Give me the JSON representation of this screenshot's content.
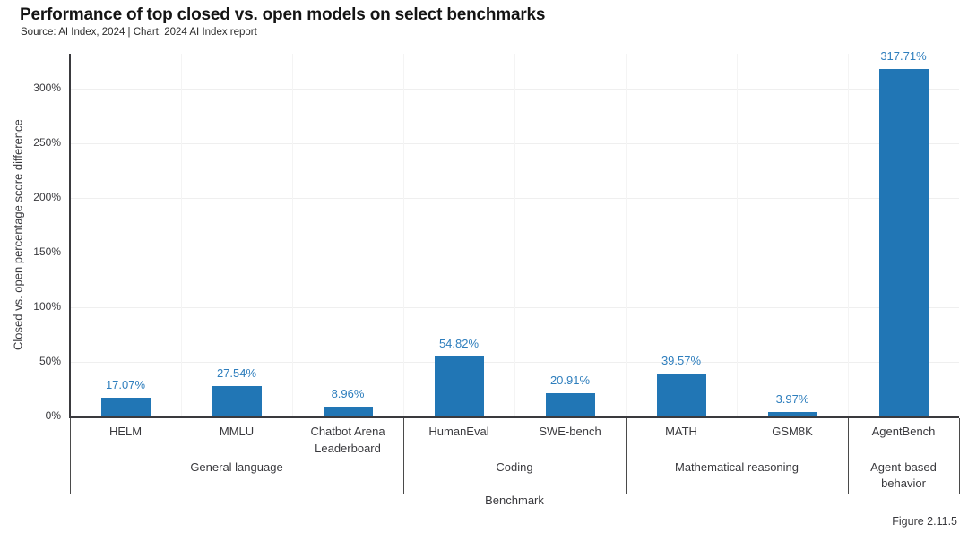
{
  "header": {
    "title": "Performance of top closed vs. open models on select benchmarks",
    "subtitle": "Source: AI Index, 2024 | Chart: 2024 AI Index report"
  },
  "figure_note": "Figure 2.11.5",
  "chart_data": {
    "type": "bar",
    "title": "Performance of top closed vs. open models on select benchmarks",
    "xlabel": "Benchmark",
    "ylabel": "Closed vs. open percentage score difference",
    "ylim": [
      0,
      330
    ],
    "grid": true,
    "legend": "none",
    "bar_color": "#2176b5",
    "value_label_color": "#2e7ebd",
    "axis_color": "#3a3a3e",
    "yticks": [
      "0%",
      "50%",
      "100%",
      "150%",
      "200%",
      "250%",
      "300%"
    ],
    "ytick_values": [
      0,
      50,
      100,
      150,
      200,
      250,
      300
    ],
    "groups": [
      {
        "label": "General language",
        "benchmarks": [
          {
            "name": "HELM",
            "value": 17.07,
            "label": "17.07%"
          },
          {
            "name": "MMLU",
            "value": 27.54,
            "label": "27.54%"
          },
          {
            "name": "Chatbot Arena Leaderboard",
            "value": 8.96,
            "label": "8.96%"
          }
        ]
      },
      {
        "label": "Coding",
        "benchmarks": [
          {
            "name": "HumanEval",
            "value": 54.82,
            "label": "54.82%"
          },
          {
            "name": "SWE-bench",
            "value": 20.91,
            "label": "20.91%"
          }
        ]
      },
      {
        "label": "Mathematical reasoning",
        "benchmarks": [
          {
            "name": "MATH",
            "value": 39.57,
            "label": "39.57%"
          },
          {
            "name": "GSM8K",
            "value": 3.97,
            "label": "3.97%"
          }
        ]
      },
      {
        "label": "Agent-based behavior",
        "benchmarks": [
          {
            "name": "AgentBench",
            "value": 317.71,
            "label": "317.71%"
          }
        ]
      }
    ]
  }
}
